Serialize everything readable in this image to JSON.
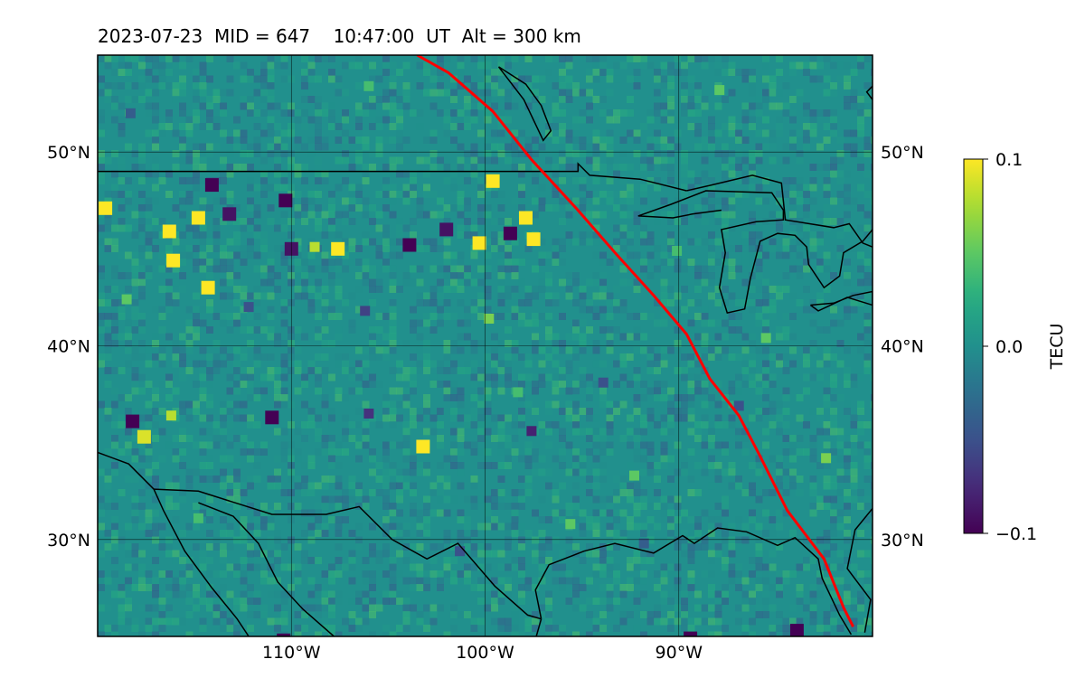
{
  "title": "2023-07-23  MID = 647    10:47:00  UT  Alt = 300 km",
  "chart_data": {
    "type": "heatmap",
    "title": "2023-07-23  MID = 647    10:47:00  UT  Alt = 300 km",
    "projection": "map (longitude/latitude)",
    "extent": {
      "lon_min": -120,
      "lon_max": -80,
      "lat_min": 25,
      "lat_max": 55
    },
    "x_ticks": [
      {
        "value": -110,
        "label": "110°W"
      },
      {
        "value": -100,
        "label": "100°W"
      },
      {
        "value": -90,
        "label": "90°W"
      }
    ],
    "y_ticks": [
      {
        "value": 30,
        "label": "30°N"
      },
      {
        "value": 40,
        "label": "40°N"
      },
      {
        "value": 50,
        "label": "50°N"
      }
    ],
    "grid": true,
    "colormap": "viridis",
    "colorbar": {
      "label": "TECU",
      "vmin": -0.1,
      "vmax": 0.1,
      "ticks": [
        {
          "value": 0.1,
          "label": "0.1"
        },
        {
          "value": 0.0,
          "label": "0.0"
        },
        {
          "value": -0.1,
          "label": "−0.1"
        }
      ],
      "position": "right"
    },
    "background_value": 0.0,
    "anomalies": [
      {
        "lon": -119.6,
        "lat": 47.1,
        "value": 0.1
      },
      {
        "lon": -116.3,
        "lat": 45.9,
        "value": 0.1
      },
      {
        "lon": -116.1,
        "lat": 44.4,
        "value": 0.1
      },
      {
        "lon": -114.8,
        "lat": 46.6,
        "value": 0.1
      },
      {
        "lon": -114.3,
        "lat": 43.0,
        "value": 0.1
      },
      {
        "lon": -114.1,
        "lat": 48.3,
        "value": -0.1
      },
      {
        "lon": -113.2,
        "lat": 46.8,
        "value": -0.09
      },
      {
        "lon": -110.3,
        "lat": 47.5,
        "value": -0.1
      },
      {
        "lon": -110.0,
        "lat": 45.0,
        "value": -0.09
      },
      {
        "lon": -108.8,
        "lat": 45.1,
        "value": 0.08
      },
      {
        "lon": -107.6,
        "lat": 45.0,
        "value": 0.1
      },
      {
        "lon": -103.9,
        "lat": 45.2,
        "value": -0.1
      },
      {
        "lon": -102.0,
        "lat": 46.0,
        "value": -0.09
      },
      {
        "lon": -100.3,
        "lat": 45.3,
        "value": 0.1
      },
      {
        "lon": -99.6,
        "lat": 48.5,
        "value": 0.1
      },
      {
        "lon": -98.7,
        "lat": 45.8,
        "value": -0.1
      },
      {
        "lon": -97.5,
        "lat": 45.5,
        "value": 0.1
      },
      {
        "lon": -97.9,
        "lat": 46.6,
        "value": 0.1
      },
      {
        "lon": -103.2,
        "lat": 34.8,
        "value": 0.1
      },
      {
        "lon": -118.2,
        "lat": 36.1,
        "value": -0.1
      },
      {
        "lon": -116.2,
        "lat": 36.4,
        "value": 0.08
      },
      {
        "lon": -117.6,
        "lat": 35.3,
        "value": 0.09
      },
      {
        "lon": -111.0,
        "lat": 36.3,
        "value": -0.1
      },
      {
        "lon": -106.0,
        "lat": 36.5,
        "value": -0.07
      },
      {
        "lon": -97.6,
        "lat": 35.6,
        "value": -0.08
      },
      {
        "lon": -89.4,
        "lat": 24.9,
        "value": -0.1
      },
      {
        "lon": -83.9,
        "lat": 25.3,
        "value": -0.1
      },
      {
        "lon": -110.4,
        "lat": 24.8,
        "value": -0.1
      },
      {
        "lon": -92.3,
        "lat": 33.3,
        "value": 0.05
      },
      {
        "lon": -98.3,
        "lat": 37.6,
        "value": 0.04
      },
      {
        "lon": -93.9,
        "lat": 38.1,
        "value": -0.05
      },
      {
        "lon": -99.8,
        "lat": 41.4,
        "value": 0.06
      },
      {
        "lon": -118.5,
        "lat": 42.4,
        "value": 0.05
      },
      {
        "lon": -112.2,
        "lat": 42.0,
        "value": -0.05
      },
      {
        "lon": -106.2,
        "lat": 41.8,
        "value": -0.06
      },
      {
        "lon": -90.1,
        "lat": 44.9,
        "value": 0.04
      },
      {
        "lon": -85.5,
        "lat": 40.4,
        "value": 0.05
      },
      {
        "lon": -82.4,
        "lat": 34.2,
        "value": 0.06
      },
      {
        "lon": -86.9,
        "lat": 36.9,
        "value": -0.05
      },
      {
        "lon": -95.6,
        "lat": 30.8,
        "value": 0.05
      },
      {
        "lon": -87.9,
        "lat": 53.2,
        "value": 0.05
      },
      {
        "lon": -106.0,
        "lat": 53.4,
        "value": 0.04
      },
      {
        "lon": -118.3,
        "lat": 52.0,
        "value": -0.04
      },
      {
        "lon": -101.3,
        "lat": 29.4,
        "value": -0.05
      },
      {
        "lon": -114.8,
        "lat": 31.1,
        "value": 0.04
      },
      {
        "lon": -91.8,
        "lat": 29.8,
        "value": -0.04
      }
    ],
    "overlays": [
      {
        "name": "coastlines-and-borders",
        "color": "#000000",
        "paths": [
          [
            [
              -120,
              49
            ],
            [
              -95.2,
              49
            ],
            [
              -95.2,
              49.4
            ],
            [
              -94.6,
              48.8
            ],
            [
              -92,
              48.6
            ],
            [
              -89.6,
              48.0
            ]
          ],
          [
            [
              -89.6,
              48.0
            ],
            [
              -88.3,
              48.3
            ],
            [
              -86.2,
              48.8
            ],
            [
              -84.7,
              48.4
            ],
            [
              -84.5,
              46.5
            ],
            [
              -82.0,
              46.1
            ],
            [
              -81.2,
              46.3
            ],
            [
              -80.5,
              45.3
            ],
            [
              -80,
              45.1
            ]
          ],
          [
            [
              -79.6,
              54.9
            ],
            [
              -79.6,
              53.8
            ],
            [
              -80.3,
              53.1
            ],
            [
              -80,
              52.7
            ]
          ],
          [
            [
              -87.8,
              47.0
            ],
            [
              -89.3,
              46.8
            ],
            [
              -90.3,
              46.6
            ],
            [
              -92.1,
              46.7
            ],
            [
              -90.4,
              47.3
            ],
            [
              -88.6,
              48.0
            ],
            [
              -85.2,
              47.9
            ],
            [
              -84.6,
              47.0
            ],
            [
              -84.6,
              46.5
            ],
            [
              -86.0,
              46.4
            ],
            [
              -87.8,
              46.0
            ],
            [
              -87.6,
              44.8
            ],
            [
              -87.9,
              43.0
            ],
            [
              -87.5,
              41.7
            ],
            [
              -86.6,
              41.9
            ],
            [
              -86.3,
              43.5
            ],
            [
              -85.8,
              45.4
            ],
            [
              -84.9,
              45.8
            ],
            [
              -84.0,
              45.7
            ],
            [
              -83.4,
              45.1
            ],
            [
              -83.3,
              44.2
            ],
            [
              -82.5,
              43.0
            ],
            [
              -81.7,
              43.6
            ],
            [
              -81.5,
              44.8
            ],
            [
              -80.5,
              45.4
            ],
            [
              -80,
              46.0
            ]
          ],
          [
            [
              -83.2,
              42.1
            ],
            [
              -82.0,
              42.2
            ],
            [
              -81.0,
              42.6
            ],
            [
              -80,
              42.8
            ],
            [
              -80,
              42.1
            ],
            [
              -81.3,
              42.5
            ],
            [
              -82.8,
              41.8
            ],
            [
              -83.2,
              42.1
            ]
          ],
          [
            [
              -99.3,
              54.4
            ],
            [
              -97.9,
              53.5
            ],
            [
              -97.1,
              52.4
            ],
            [
              -96.6,
              51.1
            ],
            [
              -97.0,
              50.6
            ],
            [
              -98.0,
              52.7
            ],
            [
              -99.3,
              54.4
            ]
          ],
          [
            [
              -120,
              34.5
            ],
            [
              -118.4,
              33.9
            ],
            [
              -117.1,
              32.6
            ],
            [
              -116.6,
              31.5
            ],
            [
              -115.5,
              29.4
            ],
            [
              -114.1,
              27.5
            ],
            [
              -112.8,
              25.9
            ],
            [
              -112.2,
              25.0
            ]
          ],
          [
            [
              -114.8,
              31.9
            ],
            [
              -113.0,
              31.2
            ],
            [
              -111.7,
              29.8
            ],
            [
              -110.7,
              27.8
            ],
            [
              -109.4,
              26.4
            ],
            [
              -107.8,
              25.0
            ]
          ],
          [
            [
              -117.1,
              32.6
            ],
            [
              -114.8,
              32.5
            ],
            [
              -111.0,
              31.3
            ],
            [
              -108.2,
              31.3
            ],
            [
              -106.5,
              31.7
            ],
            [
              -104.8,
              30.0
            ],
            [
              -103.0,
              29.0
            ],
            [
              -101.4,
              29.8
            ],
            [
              -99.5,
              27.6
            ],
            [
              -97.8,
              26.1
            ],
            [
              -97.1,
              25.9
            ]
          ],
          [
            [
              -97.1,
              25.9
            ],
            [
              -97.4,
              27.4
            ],
            [
              -96.7,
              28.7
            ],
            [
              -94.9,
              29.4
            ],
            [
              -93.3,
              29.8
            ],
            [
              -91.3,
              29.3
            ],
            [
              -89.8,
              30.2
            ],
            [
              -89.2,
              29.8
            ],
            [
              -88.0,
              30.6
            ],
            [
              -86.5,
              30.4
            ],
            [
              -84.9,
              29.7
            ],
            [
              -84.0,
              30.1
            ],
            [
              -82.8,
              29.0
            ],
            [
              -82.6,
              28.0
            ],
            [
              -81.7,
              26.1
            ],
            [
              -81.1,
              25.1
            ]
          ],
          [
            [
              -80,
              31.6
            ],
            [
              -80.9,
              30.5
            ],
            [
              -81.3,
              28.5
            ],
            [
              -80.1,
              26.9
            ],
            [
              -80.4,
              25.2
            ]
          ],
          [
            [
              -97.1,
              25.9
            ],
            [
              -97.5,
              24.5
            ]
          ]
        ]
      },
      {
        "name": "red-track",
        "color": "#ff0000",
        "path": [
          [
            -103.5,
            55
          ],
          [
            -101.9,
            54.1
          ],
          [
            -99.6,
            52.1
          ],
          [
            -97.6,
            49.6
          ],
          [
            -95.3,
            47.1
          ],
          [
            -93.2,
            44.7
          ],
          [
            -91.3,
            42.6
          ],
          [
            -89.6,
            40.6
          ],
          [
            -88.4,
            38.3
          ],
          [
            -86.9,
            36.4
          ],
          [
            -85.8,
            34.3
          ],
          [
            -84.4,
            31.5
          ],
          [
            -82.5,
            29.0
          ],
          [
            -81.5,
            26.5
          ],
          [
            -81.0,
            25.5
          ]
        ]
      }
    ]
  }
}
